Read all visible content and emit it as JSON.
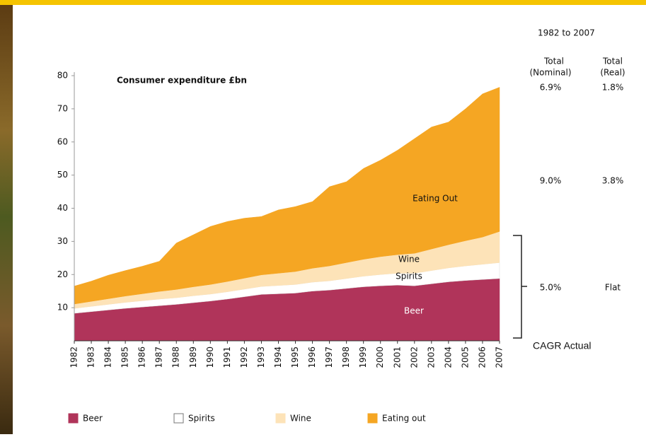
{
  "chart_data": {
    "type": "area",
    "stacked": true,
    "title": "Consumer expenditure £bn",
    "x": [
      1982,
      1983,
      1984,
      1985,
      1986,
      1987,
      1988,
      1989,
      1990,
      1991,
      1992,
      1993,
      1994,
      1995,
      1996,
      1997,
      1998,
      1999,
      2000,
      2001,
      2002,
      2003,
      2004,
      2005,
      2006,
      2007
    ],
    "series": [
      {
        "name": "Beer",
        "color": "#b0345a",
        "values": [
          8.3,
          8.8,
          9.3,
          9.8,
          10.2,
          10.6,
          11.0,
          11.5,
          12.0,
          12.6,
          13.3,
          14.0,
          14.2,
          14.4,
          15.0,
          15.3,
          15.8,
          16.3,
          16.6,
          16.8,
          16.6,
          17.2,
          17.8,
          18.2,
          18.5,
          18.8
        ]
      },
      {
        "name": "Spirits",
        "color": "#ffffff",
        "values": [
          1.5,
          1.6,
          1.7,
          1.8,
          1.9,
          2.0,
          2.0,
          2.1,
          2.1,
          2.2,
          2.3,
          2.4,
          2.5,
          2.6,
          2.7,
          2.8,
          3.0,
          3.2,
          3.4,
          3.6,
          3.8,
          4.0,
          4.2,
          4.4,
          4.6,
          4.8
        ]
      },
      {
        "name": "Wine",
        "color": "#fde3b8",
        "values": [
          1.3,
          1.5,
          1.7,
          1.9,
          2.1,
          2.3,
          2.5,
          2.7,
          2.9,
          3.1,
          3.3,
          3.5,
          3.7,
          3.9,
          4.2,
          4.5,
          4.8,
          5.1,
          5.4,
          5.6,
          6.0,
          6.5,
          7.0,
          7.6,
          8.2,
          9.4
        ]
      },
      {
        "name": "Eating out",
        "color": "#f5a623",
        "values": [
          5.4,
          6.1,
          7.1,
          7.7,
          8.3,
          9.1,
          14.0,
          15.7,
          17.5,
          18.1,
          18.1,
          17.6,
          19.1,
          19.6,
          20.1,
          23.9,
          24.4,
          27.4,
          29.1,
          31.5,
          34.6,
          36.8,
          37.0,
          39.8,
          43.2,
          43.5
        ]
      }
    ],
    "xlim": [
      1982,
      2007
    ],
    "xticks": [
      1982,
      1983,
      1984,
      1985,
      1986,
      1987,
      1988,
      1989,
      1990,
      1991,
      1992,
      1993,
      1994,
      1995,
      1996,
      1997,
      1998,
      1999,
      2000,
      2001,
      2002,
      2003,
      2004,
      2005,
      2006,
      2007
    ],
    "ylim": [
      0,
      80
    ],
    "yticks": [
      10,
      20,
      30,
      40,
      50,
      60,
      70,
      80
    ],
    "legend": "bottom",
    "area_labels": [
      "Eating Out",
      "Wine",
      "Spirits",
      "Beer"
    ],
    "side_table": {
      "period": "1982 to 2007",
      "header_top": [
        "Total",
        "Total"
      ],
      "header_bottom": [
        "(Nominal)",
        "(Real)"
      ],
      "rows": [
        [
          "6.9%",
          "1.8%"
        ],
        [
          "9.0%",
          "3.8%"
        ],
        [
          "5.0%",
          "Flat"
        ]
      ],
      "note": "CAGR Actual"
    }
  }
}
